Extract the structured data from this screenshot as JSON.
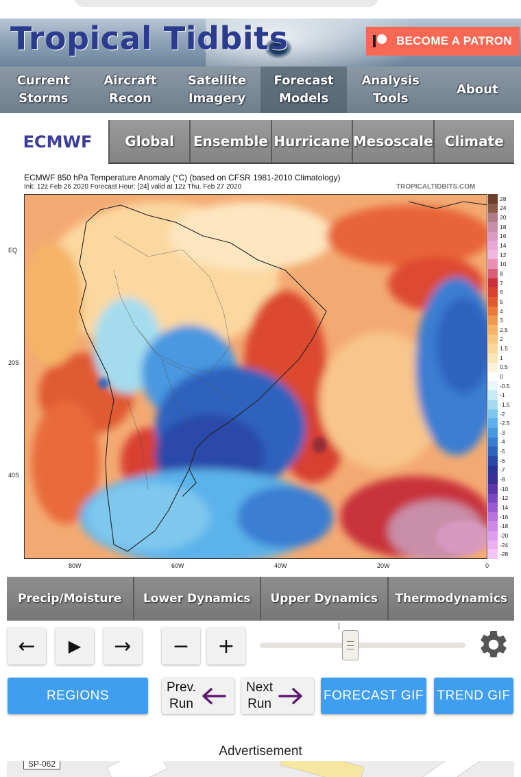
{
  "site": {
    "logo": "Tropical Tidbits",
    "patron_label": "BECOME A PATRON"
  },
  "nav": [
    {
      "line1": "Current",
      "line2": "Storms"
    },
    {
      "line1": "Aircraft",
      "line2": "Recon"
    },
    {
      "line1": "Satellite",
      "line2": "Imagery"
    },
    {
      "line1": "Forecast",
      "line2": "Models"
    },
    {
      "line1": "Analysis",
      "line2": "Tools"
    },
    {
      "line1": "About",
      "line2": ""
    }
  ],
  "model": {
    "name": "ECMWF",
    "tabs": [
      "Global",
      "Ensemble",
      "Hurricane",
      "Mesoscale",
      "Climate"
    ]
  },
  "map": {
    "title": "ECMWF 850 hPa Temperature Anomaly (°C) (based on CFSR 1981-2010 Climatology)",
    "subtitle": "Init: 12z Feb 26 2020   Forecast Hour: [24]   valid at 12z Thu, Feb 27 2020",
    "site": "TROPICALTIDBITS.COM",
    "lat_labels": [
      "EQ",
      "20S",
      "40S"
    ],
    "lon_labels": [
      "80W",
      "60W",
      "40W",
      "20W",
      "0"
    ],
    "colorbar": [
      "28",
      "24",
      "20",
      "18",
      "16",
      "14",
      "12",
      "10",
      "8",
      "7",
      "6",
      "5",
      "4",
      "3",
      "2.5",
      "2",
      "1.5",
      "1",
      "0.5",
      "0",
      "-0.5",
      "-1",
      "-1.5",
      "-2",
      "-2.5",
      "-3",
      "-4",
      "-5",
      "-6",
      "-7",
      "-8",
      "-10",
      "-12",
      "-14",
      "-16",
      "-18",
      "-20",
      "-24",
      "-28"
    ],
    "colorbar_colors": [
      "#6b3f2a",
      "#8a5a4a",
      "#b07a86",
      "#c98ea8",
      "#d99ac4",
      "#e8a8d8",
      "#f0b8e0",
      "#e890b0",
      "#d8607a",
      "#c8303a",
      "#d84030",
      "#e05a30",
      "#ea7a3a",
      "#f09a50",
      "#f5b468",
      "#f8c882",
      "#fad89a",
      "#fbe6b8",
      "#fdf2da",
      "#ffffff",
      "#eaf6f8",
      "#c8ecf2",
      "#a4dcee",
      "#7ec8ee",
      "#5cb2ea",
      "#4898e0",
      "#3a7ed2",
      "#2e62be",
      "#2a48a8",
      "#2c3494",
      "#3a2e92",
      "#5a36a8",
      "#7a48c0",
      "#9a5ad0",
      "#b872de",
      "#cc8ae6",
      "#de9cee",
      "#eab0f2",
      "#f4c4f6"
    ]
  },
  "categories": [
    "Precip/Moisture",
    "Lower Dynamics",
    "Upper Dynamics",
    "Thermodynamics"
  ],
  "controls": {
    "prev_icon": "←",
    "play_icon": "▶",
    "next_icon": "→",
    "minus_icon": "−",
    "plus_icon": "+",
    "slider_fraction": 0.44
  },
  "buttons": {
    "regions": "REGIONS",
    "prev_run_l1": "Prev.",
    "prev_run_l2": "Run",
    "next_run_l1": "Next",
    "next_run_l2": "Run",
    "forecast_gif": "FORECAST GIF",
    "trend_gif": "TREND GIF"
  },
  "ad": {
    "label": "Advertisement",
    "sign": "SP-062"
  }
}
